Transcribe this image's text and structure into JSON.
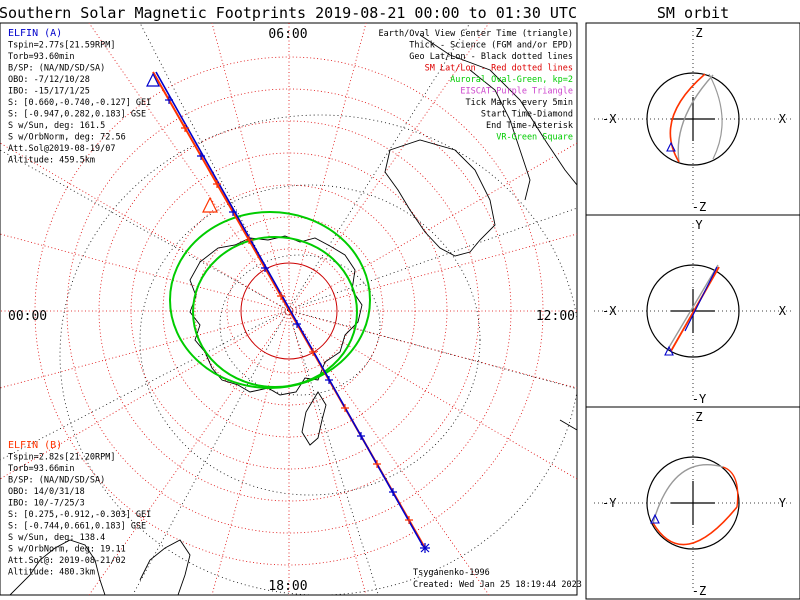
{
  "title": "Southern Solar Magnetic Footprints 2019-08-21 00:00 to 01:30 UTC",
  "sm_title": "SM orbit",
  "colors": {
    "grid": "#dd0000",
    "track_a": "#0000cc",
    "track_b": "#ff3300",
    "oval": "#00cc00",
    "coast": "#000000",
    "orbit_gray": "#999999"
  },
  "polar_labels": {
    "top": "06:00",
    "left": "00:00",
    "right": "12:00",
    "bottom": "18:00"
  },
  "legend": [
    {
      "text": "Earth/Oval View Center Time (triangle)",
      "color": "#000000"
    },
    {
      "text": "Thick - Science (FGM and/or EPD)",
      "color": "#000000"
    },
    {
      "text": "Geo Lat/Lon - Black dotted lines",
      "color": "#000000"
    },
    {
      "text": "SM Lat/Lon - Red dotted lines",
      "color": "#dd0000"
    },
    {
      "text": "Auroral Oval-Green, kp=2",
      "color": "#00cc00"
    },
    {
      "text": "EISCAT-Purple Triangle",
      "color": "#cc44cc"
    },
    {
      "text": "Tick Marks every 5min",
      "color": "#000000"
    },
    {
      "text": "Start Time-Diamond",
      "color": "#000000"
    },
    {
      "text": "End Time-Asterisk",
      "color": "#000000"
    },
    {
      "text": "VR-Green Square",
      "color": "#00cc00"
    }
  ],
  "info_a": [
    {
      "text": "ELFIN (A)",
      "color": "#0000cc"
    },
    {
      "text": "Tspin=2.77s[21.59RPM]",
      "color": "#000000"
    },
    {
      "text": "Torb=93.60min",
      "color": "#000000"
    },
    {
      "text": "B/SP: (NA/ND/SD/SA)",
      "color": "#000000"
    },
    {
      "text": "OBO: -7/12/10/28",
      "color": "#000000"
    },
    {
      "text": "IBO: -15/17/1/25",
      "color": "#000000"
    },
    {
      "text": "S: [0.660,-0.740,-0.127] GEI",
      "color": "#000000"
    },
    {
      "text": "S: [-0.947,0.282,0.183] GSE",
      "color": "#000000"
    },
    {
      "text": "S w/Sun, deg: 161.5",
      "color": "#000000"
    },
    {
      "text": "S w/OrbNorm, deg: 72.56",
      "color": "#000000"
    },
    {
      "text": "Att.Sol@2019-08-19/07",
      "color": "#000000"
    },
    {
      "text": "Altitude: 459.5km",
      "color": "#000000"
    }
  ],
  "info_b": [
    {
      "text": "ELFIN (B)",
      "color": "#ff3300"
    },
    {
      "text": "Tspin=2.82s[21.20RPM]",
      "color": "#000000"
    },
    {
      "text": "Torb=93.66min",
      "color": "#000000"
    },
    {
      "text": "B/SP: (NA/ND/SD/SA)",
      "color": "#000000"
    },
    {
      "text": "OBO: 14/0/31/18",
      "color": "#000000"
    },
    {
      "text": "IBO: 10/-7/25/3",
      "color": "#000000"
    },
    {
      "text": "S: [0.275,-0.912,-0.303] GEI",
      "color": "#000000"
    },
    {
      "text": "S: [-0.744,0.661,0.183] GSE",
      "color": "#000000"
    },
    {
      "text": "S w/Sun, deg: 138.4",
      "color": "#000000"
    },
    {
      "text": "S w/OrbNorm, deg: 19.11",
      "color": "#000000"
    },
    {
      "text": "Att.Sol@: 2019-08-21/02",
      "color": "#000000"
    },
    {
      "text": "Altitude: 480.3km",
      "color": "#000000"
    }
  ],
  "credit": [
    "Tsyganenko-1996",
    "Created: Wed Jan 25 18:19:44 2023"
  ],
  "sm_panels": [
    {
      "top": "Z",
      "bottom": "-Z",
      "left": "-X",
      "right": "X"
    },
    {
      "top": "Y",
      "bottom": "-Y",
      "left": "-X",
      "right": "X"
    },
    {
      "top": "Z",
      "bottom": "-Z",
      "left": "-Y",
      "right": "Y"
    }
  ],
  "chart_data": {
    "type": "scatter",
    "title": "Southern Solar Magnetic Footprints 2019-08-21 00:00 to 01:30 UTC",
    "projection": "polar, magnetic local time azimuth",
    "time_range": [
      "2019-08-21 00:00",
      "2019-08-21 01:30"
    ],
    "mlt_labels": [
      "06:00",
      "00:00",
      "12:00",
      "18:00"
    ],
    "series": [
      {
        "name": "ELFIN (A)",
        "color": "#0000cc"
      },
      {
        "name": "ELFIN (B)",
        "color": "#ff3300"
      }
    ],
    "legend_position": "top-right",
    "grid": true
  }
}
